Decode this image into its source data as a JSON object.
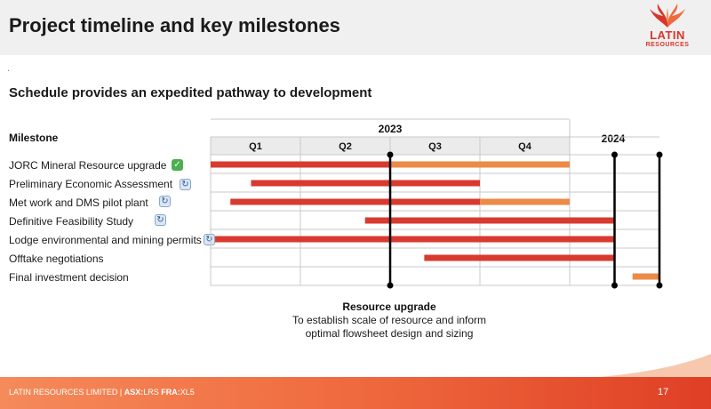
{
  "slide": {
    "title": "Project timeline and key milestones",
    "subtitle": "Schedule provides an expedited pathway to development",
    "tick": "̀"
  },
  "logo": {
    "line1": "LATIN",
    "line2": "RESOURCES",
    "icon": "flame-wings-icon",
    "color": "#d9352a"
  },
  "table": {
    "milestone_header": "Milestone",
    "year_2023": "2023",
    "year_2024": "2024",
    "quarters": [
      "Q1",
      "Q2",
      "Q3",
      "Q4"
    ]
  },
  "milestones": [
    {
      "label": "JORC Mineral Resource upgrade",
      "status_icon": "check-icon",
      "glyph": "✓"
    },
    {
      "label": "Preliminary Economic Assessment",
      "status_icon": "refresh-icon",
      "glyph": "↻"
    },
    {
      "label": "Met work and DMS pilot plant",
      "status_icon": "refresh-icon",
      "glyph": "↻"
    },
    {
      "label": "Definitive Feasibility Study",
      "status_icon": "refresh-icon",
      "glyph": "↻"
    },
    {
      "label": "Lodge environmental and mining permits",
      "status_icon": "refresh-icon",
      "glyph": "↻"
    },
    {
      "label": "Offtake negotiations",
      "status_icon": "",
      "glyph": ""
    },
    {
      "label": "Final investment decision",
      "status_icon": "",
      "glyph": ""
    }
  ],
  "timeline": {
    "unit": "quarters from start of 2023",
    "colors": {
      "red": "#d93a2f",
      "orange": "#ec8a48",
      "grid": "#c8c8c8",
      "band": "#ebebeb"
    },
    "bars": [
      {
        "row": 0,
        "start": 0.0,
        "end": 2.0,
        "color": "red"
      },
      {
        "row": 0,
        "start": 2.0,
        "end": 4.0,
        "color": "orange"
      },
      {
        "row": 1,
        "start": 0.45,
        "end": 3.0,
        "color": "red"
      },
      {
        "row": 2,
        "start": 0.22,
        "end": 3.0,
        "color": "red"
      },
      {
        "row": 2,
        "start": 3.0,
        "end": 4.0,
        "color": "orange"
      },
      {
        "row": 3,
        "start": 1.72,
        "end": 4.5,
        "color": "red"
      },
      {
        "row": 4,
        "start": 0.05,
        "end": 4.5,
        "color": "red"
      },
      {
        "row": 5,
        "start": 2.38,
        "end": 4.5,
        "color": "red"
      },
      {
        "row": 6,
        "start": 4.7,
        "end": 5.0,
        "color": "orange"
      }
    ],
    "markers": [
      2.0,
      4.5,
      5.0
    ]
  },
  "caption": {
    "title": "Resource upgrade",
    "line1": "To establish scale of resource and inform",
    "line2": "optimal flowsheet design and sizing"
  },
  "footer": {
    "company": "LATIN RESOURCES LIMITED",
    "separator": "|",
    "asx_label": "ASX:",
    "asx_code": "LRS",
    "fra_label": "FRA:",
    "fra_code": "XL5",
    "page": "17"
  }
}
